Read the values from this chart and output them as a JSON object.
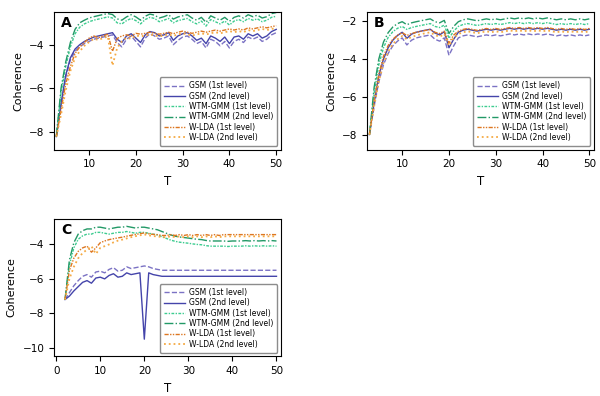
{
  "T_AB": [
    3,
    4,
    5,
    6,
    7,
    8,
    9,
    10,
    11,
    12,
    13,
    14,
    15,
    16,
    17,
    18,
    19,
    20,
    21,
    22,
    23,
    24,
    25,
    26,
    27,
    28,
    29,
    30,
    31,
    32,
    33,
    34,
    35,
    36,
    37,
    38,
    39,
    40,
    41,
    42,
    43,
    44,
    45,
    46,
    47,
    48,
    49,
    50
  ],
  "T_C": [
    2,
    3,
    4,
    5,
    6,
    7,
    8,
    9,
    10,
    11,
    12,
    13,
    14,
    15,
    16,
    17,
    18,
    19,
    20,
    21,
    22,
    23,
    24,
    25,
    26,
    27,
    28,
    29,
    30,
    31,
    32,
    33,
    34,
    35,
    36,
    37,
    38,
    39,
    40,
    41,
    42,
    43,
    44,
    45,
    46,
    47,
    48,
    49,
    50
  ],
  "A_gsm1": [
    -8.2,
    -6.8,
    -5.5,
    -4.7,
    -4.3,
    -4.1,
    -3.95,
    -3.85,
    -3.75,
    -3.7,
    -3.65,
    -3.6,
    -3.55,
    -3.9,
    -4.1,
    -3.75,
    -3.6,
    -3.85,
    -4.1,
    -3.7,
    -3.5,
    -3.6,
    -3.75,
    -3.7,
    -3.6,
    -4.0,
    -3.8,
    -3.65,
    -3.6,
    -3.75,
    -3.95,
    -3.85,
    -4.15,
    -3.75,
    -3.85,
    -4.05,
    -3.85,
    -4.15,
    -3.85,
    -3.75,
    -3.9,
    -3.65,
    -3.75,
    -3.65,
    -3.85,
    -3.75,
    -3.55,
    -3.45
  ],
  "A_gsm2": [
    -8.2,
    -6.7,
    -5.4,
    -4.6,
    -4.2,
    -4.0,
    -3.85,
    -3.75,
    -3.65,
    -3.6,
    -3.55,
    -3.5,
    -3.45,
    -3.75,
    -3.9,
    -3.6,
    -3.5,
    -3.7,
    -3.9,
    -3.55,
    -3.4,
    -3.45,
    -3.6,
    -3.55,
    -3.45,
    -3.8,
    -3.6,
    -3.5,
    -3.45,
    -3.6,
    -3.8,
    -3.7,
    -3.95,
    -3.6,
    -3.7,
    -3.85,
    -3.65,
    -3.95,
    -3.65,
    -3.6,
    -3.75,
    -3.5,
    -3.6,
    -3.5,
    -3.7,
    -3.6,
    -3.4,
    -3.3
  ],
  "A_wtmgmm1": [
    -8.2,
    -6.2,
    -5.0,
    -4.1,
    -3.5,
    -3.2,
    -3.05,
    -2.95,
    -2.88,
    -2.83,
    -2.78,
    -2.73,
    -2.78,
    -3.0,
    -3.05,
    -2.9,
    -2.8,
    -2.9,
    -3.05,
    -2.85,
    -2.75,
    -2.8,
    -2.95,
    -2.88,
    -2.8,
    -3.0,
    -2.9,
    -2.85,
    -2.8,
    -2.95,
    -3.05,
    -2.92,
    -3.15,
    -2.85,
    -2.95,
    -3.05,
    -2.92,
    -3.1,
    -2.92,
    -2.85,
    -2.95,
    -2.8,
    -2.88,
    -2.82,
    -2.95,
    -2.88,
    -2.75,
    -2.7
  ],
  "A_wtmgmm2": [
    -8.2,
    -6.0,
    -4.8,
    -3.9,
    -3.3,
    -3.0,
    -2.88,
    -2.78,
    -2.72,
    -2.67,
    -2.62,
    -2.58,
    -2.62,
    -2.82,
    -2.88,
    -2.73,
    -2.63,
    -2.73,
    -2.88,
    -2.7,
    -2.6,
    -2.65,
    -2.78,
    -2.72,
    -2.63,
    -2.83,
    -2.73,
    -2.68,
    -2.63,
    -2.78,
    -2.88,
    -2.75,
    -2.98,
    -2.68,
    -2.78,
    -2.88,
    -2.75,
    -2.93,
    -2.75,
    -2.68,
    -2.78,
    -2.63,
    -2.72,
    -2.65,
    -2.78,
    -2.72,
    -2.58,
    -2.53
  ],
  "A_wlda1": [
    -8.2,
    -7.0,
    -5.8,
    -5.0,
    -4.4,
    -4.1,
    -3.9,
    -3.7,
    -3.6,
    -3.68,
    -3.6,
    -3.52,
    -4.3,
    -3.72,
    -3.6,
    -3.55,
    -3.6,
    -3.48,
    -3.52,
    -3.48,
    -3.43,
    -3.48,
    -3.52,
    -3.48,
    -3.43,
    -3.5,
    -3.43,
    -3.38,
    -3.43,
    -3.48,
    -3.43,
    -3.38,
    -3.43,
    -3.38,
    -3.33,
    -3.38,
    -3.33,
    -3.28,
    -3.33,
    -3.28,
    -3.33,
    -3.23,
    -3.28,
    -3.23,
    -3.18,
    -3.23,
    -3.18,
    -3.13
  ],
  "A_wlda2": [
    -8.2,
    -7.2,
    -6.1,
    -5.2,
    -4.6,
    -4.3,
    -4.05,
    -3.88,
    -3.73,
    -3.78,
    -3.7,
    -3.62,
    -4.95,
    -4.15,
    -3.85,
    -3.68,
    -3.73,
    -3.58,
    -3.62,
    -3.58,
    -3.53,
    -3.58,
    -3.62,
    -3.58,
    -3.53,
    -3.6,
    -3.53,
    -3.48,
    -3.53,
    -3.58,
    -3.53,
    -3.48,
    -3.53,
    -3.48,
    -3.43,
    -3.48,
    -3.43,
    -3.38,
    -3.43,
    -3.38,
    -3.43,
    -3.33,
    -3.38,
    -3.33,
    -3.28,
    -3.33,
    -3.28,
    -3.23
  ],
  "B_gsm1": [
    -8.0,
    -6.5,
    -5.2,
    -4.3,
    -3.7,
    -3.3,
    -3.05,
    -2.88,
    -3.25,
    -3.0,
    -2.88,
    -2.82,
    -2.77,
    -2.72,
    -2.95,
    -3.05,
    -2.88,
    -3.8,
    -3.3,
    -2.88,
    -2.77,
    -2.72,
    -2.77,
    -2.82,
    -2.77,
    -2.72,
    -2.77,
    -2.72,
    -2.77,
    -2.72,
    -2.67,
    -2.72,
    -2.67,
    -2.72,
    -2.67,
    -2.72,
    -2.67,
    -2.72,
    -2.67,
    -2.72,
    -2.77,
    -2.72,
    -2.77,
    -2.72,
    -2.77,
    -2.72,
    -2.77,
    -2.72
  ],
  "B_gsm2": [
    -8.0,
    -6.3,
    -4.9,
    -4.0,
    -3.4,
    -3.0,
    -2.75,
    -2.58,
    -2.9,
    -2.68,
    -2.58,
    -2.52,
    -2.47,
    -2.42,
    -2.62,
    -2.72,
    -2.55,
    -3.4,
    -2.95,
    -2.58,
    -2.47,
    -2.42,
    -2.47,
    -2.52,
    -2.47,
    -2.42,
    -2.47,
    -2.42,
    -2.47,
    -2.42,
    -2.37,
    -2.42,
    -2.37,
    -2.42,
    -2.37,
    -2.42,
    -2.37,
    -2.42,
    -2.37,
    -2.42,
    -2.47,
    -2.42,
    -2.47,
    -2.42,
    -2.47,
    -2.42,
    -2.47,
    -2.42
  ],
  "B_wtmgmm1": [
    -8.0,
    -5.8,
    -4.3,
    -3.4,
    -2.85,
    -2.55,
    -2.37,
    -2.27,
    -2.43,
    -2.33,
    -2.27,
    -2.22,
    -2.17,
    -2.12,
    -2.27,
    -2.33,
    -2.2,
    -2.9,
    -2.52,
    -2.27,
    -2.17,
    -2.12,
    -2.17,
    -2.22,
    -2.17,
    -2.12,
    -2.17,
    -2.12,
    -2.17,
    -2.12,
    -2.07,
    -2.12,
    -2.07,
    -2.12,
    -2.07,
    -2.12,
    -2.07,
    -2.12,
    -2.07,
    -2.12,
    -2.17,
    -2.12,
    -2.17,
    -2.12,
    -2.17,
    -2.12,
    -2.17,
    -2.12
  ],
  "B_wtmgmm2": [
    -8.0,
    -5.5,
    -4.0,
    -3.1,
    -2.6,
    -2.3,
    -2.12,
    -2.02,
    -2.18,
    -2.08,
    -2.02,
    -1.97,
    -1.92,
    -1.87,
    -2.02,
    -2.08,
    -1.95,
    -2.65,
    -2.27,
    -2.02,
    -1.92,
    -1.87,
    -1.92,
    -1.97,
    -1.92,
    -1.87,
    -1.92,
    -1.87,
    -1.92,
    -1.87,
    -1.82,
    -1.87,
    -1.82,
    -1.87,
    -1.82,
    -1.87,
    -1.82,
    -1.87,
    -1.82,
    -1.87,
    -1.92,
    -1.87,
    -1.92,
    -1.87,
    -1.92,
    -1.87,
    -1.92,
    -1.87
  ],
  "B_wlda1": [
    -8.0,
    -6.2,
    -4.8,
    -3.85,
    -3.28,
    -2.95,
    -2.73,
    -2.6,
    -2.75,
    -2.65,
    -2.58,
    -2.53,
    -2.48,
    -2.43,
    -2.58,
    -2.65,
    -2.52,
    -3.15,
    -2.73,
    -2.52,
    -2.43,
    -2.38,
    -2.43,
    -2.48,
    -2.43,
    -2.38,
    -2.43,
    -2.38,
    -2.43,
    -2.38,
    -2.33,
    -2.38,
    -2.33,
    -2.38,
    -2.33,
    -2.38,
    -2.33,
    -2.38,
    -2.33,
    -2.38,
    -2.43,
    -2.38,
    -2.43,
    -2.38,
    -2.43,
    -2.38,
    -2.43,
    -2.38
  ],
  "B_wlda2": [
    -8.0,
    -6.5,
    -5.2,
    -4.2,
    -3.6,
    -3.2,
    -2.95,
    -2.78,
    -2.95,
    -2.83,
    -2.75,
    -2.68,
    -2.63,
    -2.58,
    -2.73,
    -2.82,
    -2.67,
    -3.3,
    -2.88,
    -2.67,
    -2.58,
    -2.53,
    -2.58,
    -2.63,
    -2.58,
    -2.53,
    -2.58,
    -2.53,
    -2.58,
    -2.53,
    -2.48,
    -2.53,
    -2.48,
    -2.53,
    -2.48,
    -2.53,
    -2.48,
    -2.53,
    -2.48,
    -2.53,
    -2.58,
    -2.53,
    -2.58,
    -2.53,
    -2.58,
    -2.53,
    -2.58,
    -2.53
  ],
  "C_gsm1": [
    -7.2,
    -6.8,
    -6.4,
    -6.1,
    -5.85,
    -5.75,
    -5.9,
    -5.6,
    -5.55,
    -5.65,
    -5.45,
    -5.35,
    -5.55,
    -5.5,
    -5.3,
    -5.4,
    -5.35,
    -5.3,
    -5.25,
    -5.3,
    -5.4,
    -5.45,
    -5.5,
    -5.5,
    -5.5,
    -5.5,
    -5.5,
    -5.5,
    -5.5,
    -5.5,
    -5.5,
    -5.5,
    -5.5,
    -5.5,
    -5.5,
    -5.5,
    -5.5,
    -5.5,
    -5.5,
    -5.5,
    -5.5,
    -5.5,
    -5.5,
    -5.5,
    -5.5,
    -5.5,
    -5.5,
    -5.5,
    -5.5
  ],
  "C_gsm2": [
    -7.2,
    -7.0,
    -6.7,
    -6.45,
    -6.2,
    -6.1,
    -6.25,
    -5.95,
    -5.9,
    -6.0,
    -5.8,
    -5.7,
    -5.9,
    -5.85,
    -5.65,
    -5.75,
    -5.7,
    -5.65,
    -9.5,
    -5.65,
    -5.75,
    -5.8,
    -5.85,
    -5.85,
    -5.85,
    -5.85,
    -5.85,
    -5.85,
    -5.85,
    -5.85,
    -5.85,
    -5.85,
    -5.85,
    -5.85,
    -5.85,
    -5.85,
    -5.85,
    -5.85,
    -5.85,
    -5.85,
    -5.85,
    -5.85,
    -5.85,
    -5.85,
    -5.85,
    -5.85,
    -5.85,
    -5.85,
    -5.85
  ],
  "C_wtmgmm1": [
    -7.2,
    -5.2,
    -4.2,
    -3.7,
    -3.5,
    -3.4,
    -3.4,
    -3.3,
    -3.3,
    -3.35,
    -3.4,
    -3.35,
    -3.3,
    -3.3,
    -3.25,
    -3.3,
    -3.35,
    -3.3,
    -3.3,
    -3.35,
    -3.4,
    -3.45,
    -3.55,
    -3.65,
    -3.75,
    -3.82,
    -3.87,
    -3.9,
    -3.93,
    -3.97,
    -4.0,
    -4.02,
    -4.07,
    -4.1,
    -4.1,
    -4.1,
    -4.1,
    -4.12,
    -4.1,
    -4.1,
    -4.1,
    -4.08,
    -4.1,
    -4.08,
    -4.1,
    -4.08,
    -4.1,
    -4.08,
    -4.1
  ],
  "C_wtmgmm2": [
    -7.2,
    -4.9,
    -3.9,
    -3.4,
    -3.2,
    -3.1,
    -3.1,
    -3.0,
    -3.0,
    -3.05,
    -3.1,
    -3.05,
    -3.0,
    -3.0,
    -2.95,
    -3.0,
    -3.05,
    -3.0,
    -3.0,
    -3.05,
    -3.1,
    -3.15,
    -3.25,
    -3.35,
    -3.45,
    -3.52,
    -3.57,
    -3.6,
    -3.63,
    -3.67,
    -3.7,
    -3.72,
    -3.77,
    -3.8,
    -3.8,
    -3.8,
    -3.8,
    -3.82,
    -3.8,
    -3.8,
    -3.8,
    -3.78,
    -3.8,
    -3.78,
    -3.8,
    -3.78,
    -3.8,
    -3.78,
    -3.8
  ],
  "C_wlda1": [
    -7.2,
    -5.5,
    -4.8,
    -4.4,
    -4.2,
    -4.1,
    -4.45,
    -4.2,
    -3.9,
    -3.8,
    -3.72,
    -3.67,
    -3.62,
    -3.58,
    -3.52,
    -3.47,
    -3.42,
    -3.38,
    -3.33,
    -3.38,
    -3.42,
    -3.43,
    -3.48,
    -3.48,
    -3.43,
    -3.48,
    -3.43,
    -3.48,
    -3.43,
    -3.48,
    -3.43,
    -3.48,
    -3.43,
    -3.48,
    -3.43,
    -3.48,
    -3.43,
    -3.43,
    -3.43,
    -3.43,
    -3.43,
    -3.43,
    -3.43,
    -3.43,
    -3.43,
    -3.43,
    -3.43,
    -3.43,
    -3.43
  ],
  "C_wlda2": [
    -7.2,
    -6.0,
    -5.3,
    -4.8,
    -4.5,
    -4.3,
    -4.1,
    -4.55,
    -4.2,
    -4.1,
    -4.0,
    -3.88,
    -3.78,
    -3.72,
    -3.65,
    -3.58,
    -3.52,
    -3.47,
    -3.42,
    -3.47,
    -3.52,
    -3.53,
    -3.58,
    -3.58,
    -3.53,
    -3.58,
    -3.53,
    -3.58,
    -3.53,
    -3.58,
    -3.53,
    -3.58,
    -3.53,
    -3.58,
    -3.53,
    -3.58,
    -3.53,
    -3.53,
    -3.53,
    -3.53,
    -3.53,
    -3.53,
    -3.53,
    -3.53,
    -3.53,
    -3.53,
    -3.53,
    -3.53,
    -3.53
  ],
  "colors": {
    "gsm1": "#7b72c4",
    "gsm2": "#4444aa",
    "wtmgmm1": "#3dcc90",
    "wtmgmm2": "#229966",
    "wlda1": "#dd7722",
    "wlda2": "#f5aa44"
  },
  "A_ylim": [
    -8.8,
    -2.5
  ],
  "A_yticks": [
    -8,
    -6,
    -4
  ],
  "A_xlim": [
    2.5,
    51
  ],
  "A_xticks": [
    10,
    20,
    30,
    40,
    50
  ],
  "B_ylim": [
    -8.8,
    -1.5
  ],
  "B_yticks": [
    -8,
    -6,
    -4,
    -2
  ],
  "B_xlim": [
    2.5,
    51
  ],
  "B_xticks": [
    10,
    20,
    30,
    40,
    50
  ],
  "C_ylim": [
    -10.5,
    -2.5
  ],
  "C_yticks": [
    -10,
    -8,
    -6,
    -4
  ],
  "C_xlim": [
    -0.5,
    51
  ],
  "C_xticks": [
    0,
    10,
    20,
    30,
    40,
    50
  ]
}
